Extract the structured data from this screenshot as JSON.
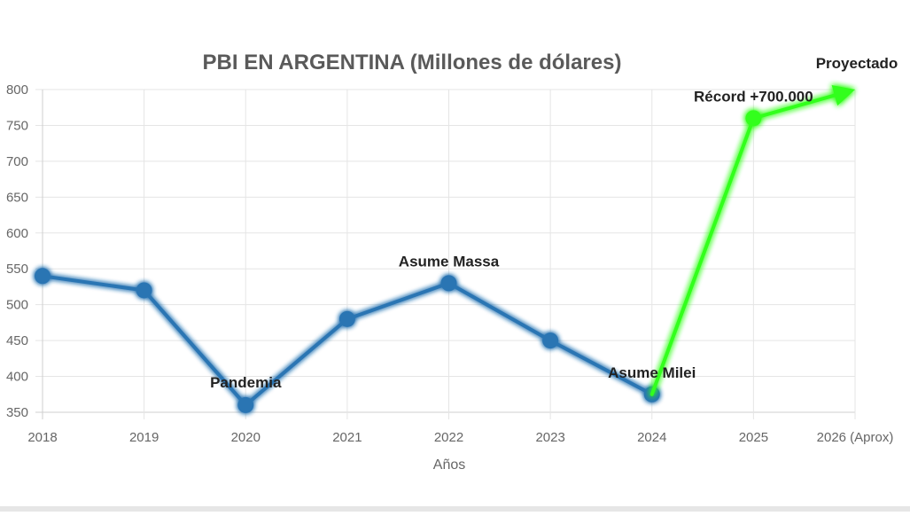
{
  "chart_data": {
    "type": "line",
    "title": "PBI EN ARGENTINA (Millones de dólares)",
    "xlabel": "Años",
    "ylabel": "",
    "categories": [
      "2018",
      "2019",
      "2020",
      "2021",
      "2022",
      "2023",
      "2024",
      "2025",
      "2026 (Aprox)"
    ],
    "ylim": [
      350,
      800
    ],
    "yticks": [
      350,
      400,
      450,
      500,
      550,
      600,
      650,
      700,
      750,
      800
    ],
    "grid": true,
    "series": [
      {
        "values": [
          540,
          520,
          360,
          480,
          530,
          450,
          375,
          null,
          null
        ],
        "color": "#2a75b3",
        "glow": "#7fb2ef"
      },
      {
        "values": [
          null,
          null,
          null,
          null,
          null,
          null,
          375,
          760,
          800
        ],
        "color": "#33ff1a",
        "glow": "#33ff1a",
        "end_marker": "arrow"
      }
    ],
    "annotations": [
      {
        "category": "2020",
        "y": 360,
        "text": "Pandemia"
      },
      {
        "category": "2022",
        "y": 530,
        "text": "Asume Massa"
      },
      {
        "category": "2024",
        "y": 375,
        "text": "Asume Milei"
      },
      {
        "category": "2025",
        "y": 760,
        "text": "Récord +700.000"
      },
      {
        "category": "2026 (Aprox)",
        "y": 800,
        "text": "Proyectado"
      }
    ]
  },
  "colors": {
    "background": "#ffffff",
    "grid": "#e5e5e5",
    "axis": "#cfcfcf",
    "tick_text": "#666666",
    "title_text": "#5a5a5a",
    "annotation_text": "#222222",
    "footer": "#e6e6e6"
  }
}
